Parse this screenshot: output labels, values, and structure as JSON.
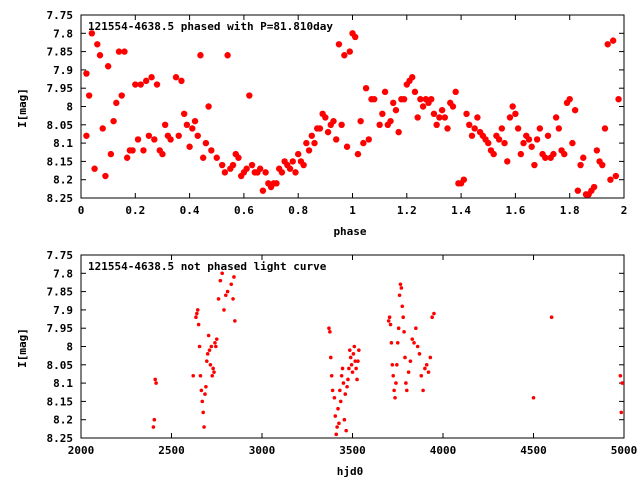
{
  "chart_data": [
    {
      "type": "scatter",
      "title": "121554-4638.5 phased with P=81.810day",
      "xlabel": "phase",
      "ylabel": "I[mag]",
      "xlim": [
        0,
        2
      ],
      "ylim": [
        8.25,
        7.75
      ],
      "xticks": [
        "0",
        "0.2",
        "0.4",
        "0.6",
        "0.8",
        "1",
        "1.2",
        "1.4",
        "1.6",
        "1.8",
        "2"
      ],
      "yticks": [
        "7.75",
        "7.8",
        "7.85",
        "7.9",
        "7.95",
        "8",
        "8.05",
        "8.1",
        "8.15",
        "8.2",
        "8.25"
      ],
      "color": "#ff0000",
      "marker": "filled-circle-large",
      "points": [
        [
          0.02,
          7.91
        ],
        [
          0.02,
          8.08
        ],
        [
          0.03,
          7.97
        ],
        [
          0.04,
          7.8
        ],
        [
          0.05,
          8.17
        ],
        [
          0.06,
          7.83
        ],
        [
          0.07,
          7.86
        ],
        [
          0.08,
          8.06
        ],
        [
          0.09,
          8.19
        ],
        [
          0.1,
          7.89
        ],
        [
          0.11,
          8.13
        ],
        [
          0.12,
          8.04
        ],
        [
          0.13,
          7.99
        ],
        [
          0.14,
          7.85
        ],
        [
          0.15,
          7.97
        ],
        [
          0.16,
          7.85
        ],
        [
          0.17,
          8.14
        ],
        [
          0.18,
          8.12
        ],
        [
          0.19,
          8.12
        ],
        [
          0.2,
          7.94
        ],
        [
          0.21,
          8.09
        ],
        [
          0.22,
          7.94
        ],
        [
          0.23,
          8.12
        ],
        [
          0.24,
          7.93
        ],
        [
          0.25,
          8.08
        ],
        [
          0.26,
          7.92
        ],
        [
          0.27,
          8.09
        ],
        [
          0.28,
          7.94
        ],
        [
          0.29,
          8.12
        ],
        [
          0.3,
          8.13
        ],
        [
          0.31,
          8.05
        ],
        [
          0.32,
          8.08
        ],
        [
          0.33,
          8.09
        ],
        [
          0.35,
          7.92
        ],
        [
          0.36,
          8.08
        ],
        [
          0.37,
          7.93
        ],
        [
          0.38,
          8.02
        ],
        [
          0.39,
          8.05
        ],
        [
          0.4,
          8.11
        ],
        [
          0.41,
          8.06
        ],
        [
          0.42,
          8.04
        ],
        [
          0.43,
          8.08
        ],
        [
          0.44,
          7.86
        ],
        [
          0.45,
          8.14
        ],
        [
          0.46,
          8.1
        ],
        [
          0.47,
          8.0
        ],
        [
          0.48,
          8.12
        ],
        [
          0.5,
          8.14
        ],
        [
          0.52,
          8.16
        ],
        [
          0.53,
          8.18
        ],
        [
          0.54,
          7.86
        ],
        [
          0.55,
          8.17
        ],
        [
          0.56,
          8.16
        ],
        [
          0.57,
          8.13
        ],
        [
          0.58,
          8.14
        ],
        [
          0.59,
          8.19
        ],
        [
          0.6,
          8.18
        ],
        [
          0.61,
          8.17
        ],
        [
          0.62,
          7.97
        ],
        [
          0.63,
          8.16
        ],
        [
          0.64,
          8.18
        ],
        [
          0.65,
          8.18
        ],
        [
          0.66,
          8.17
        ],
        [
          0.67,
          8.23
        ],
        [
          0.68,
          8.18
        ],
        [
          0.69,
          8.21
        ],
        [
          0.7,
          8.22
        ],
        [
          0.71,
          8.21
        ],
        [
          0.72,
          8.21
        ],
        [
          0.73,
          8.17
        ],
        [
          0.74,
          8.18
        ],
        [
          0.75,
          8.15
        ],
        [
          0.76,
          8.16
        ],
        [
          0.77,
          8.17
        ],
        [
          0.78,
          8.15
        ],
        [
          0.79,
          8.18
        ],
        [
          0.8,
          8.13
        ],
        [
          0.81,
          8.15
        ],
        [
          0.82,
          8.16
        ],
        [
          0.83,
          8.1
        ],
        [
          0.84,
          8.12
        ],
        [
          0.85,
          8.08
        ],
        [
          0.86,
          8.1
        ],
        [
          0.87,
          8.06
        ],
        [
          0.88,
          8.06
        ],
        [
          0.89,
          8.02
        ],
        [
          0.9,
          8.03
        ],
        [
          0.91,
          8.07
        ],
        [
          0.92,
          8.05
        ],
        [
          0.93,
          8.04
        ],
        [
          0.94,
          8.09
        ],
        [
          0.95,
          7.83
        ],
        [
          0.96,
          8.05
        ],
        [
          0.97,
          7.86
        ],
        [
          0.98,
          8.11
        ],
        [
          0.99,
          7.85
        ],
        [
          1.0,
          7.8
        ],
        [
          1.01,
          7.81
        ],
        [
          1.02,
          8.13
        ],
        [
          1.03,
          8.04
        ],
        [
          1.04,
          8.1
        ],
        [
          1.05,
          7.95
        ],
        [
          1.06,
          8.09
        ],
        [
          1.07,
          7.98
        ],
        [
          1.08,
          7.98
        ],
        [
          1.1,
          8.05
        ],
        [
          1.11,
          8.02
        ],
        [
          1.12,
          7.96
        ],
        [
          1.13,
          8.05
        ],
        [
          1.14,
          8.04
        ],
        [
          1.15,
          7.99
        ],
        [
          1.16,
          8.01
        ],
        [
          1.17,
          8.07
        ],
        [
          1.18,
          7.98
        ],
        [
          1.19,
          7.98
        ],
        [
          1.2,
          7.94
        ],
        [
          1.21,
          7.93
        ],
        [
          1.22,
          7.92
        ],
        [
          1.23,
          7.96
        ],
        [
          1.24,
          8.03
        ],
        [
          1.25,
          7.98
        ],
        [
          1.26,
          8.0
        ],
        [
          1.27,
          7.98
        ],
        [
          1.28,
          7.99
        ],
        [
          1.29,
          7.98
        ],
        [
          1.3,
          8.02
        ],
        [
          1.31,
          8.05
        ],
        [
          1.32,
          8.03
        ],
        [
          1.33,
          8.01
        ],
        [
          1.34,
          8.03
        ],
        [
          1.35,
          8.06
        ],
        [
          1.36,
          7.99
        ],
        [
          1.37,
          8.0
        ],
        [
          1.38,
          7.96
        ],
        [
          1.39,
          8.21
        ],
        [
          1.4,
          8.21
        ],
        [
          1.41,
          8.2
        ],
        [
          1.42,
          8.02
        ],
        [
          1.43,
          8.05
        ],
        [
          1.44,
          8.08
        ],
        [
          1.45,
          8.06
        ],
        [
          1.46,
          8.03
        ],
        [
          1.47,
          8.07
        ],
        [
          1.48,
          8.08
        ],
        [
          1.49,
          8.09
        ],
        [
          1.5,
          8.1
        ],
        [
          1.51,
          8.12
        ],
        [
          1.52,
          8.13
        ],
        [
          1.53,
          8.08
        ],
        [
          1.54,
          8.09
        ],
        [
          1.55,
          8.06
        ],
        [
          1.56,
          8.1
        ],
        [
          1.57,
          8.15
        ],
        [
          1.58,
          8.03
        ],
        [
          1.59,
          8.0
        ],
        [
          1.6,
          8.02
        ],
        [
          1.61,
          8.06
        ],
        [
          1.62,
          8.13
        ],
        [
          1.63,
          8.1
        ],
        [
          1.64,
          8.08
        ],
        [
          1.65,
          8.09
        ],
        [
          1.66,
          8.11
        ],
        [
          1.67,
          8.16
        ],
        [
          1.68,
          8.09
        ],
        [
          1.69,
          8.06
        ],
        [
          1.7,
          8.13
        ],
        [
          1.71,
          8.14
        ],
        [
          1.72,
          8.08
        ],
        [
          1.73,
          8.14
        ],
        [
          1.74,
          8.13
        ],
        [
          1.75,
          8.03
        ],
        [
          1.76,
          8.06
        ],
        [
          1.77,
          8.12
        ],
        [
          1.78,
          8.13
        ],
        [
          1.79,
          7.99
        ],
        [
          1.8,
          7.98
        ],
        [
          1.81,
          8.1
        ],
        [
          1.82,
          8.01
        ],
        [
          1.83,
          8.23
        ],
        [
          1.84,
          8.16
        ],
        [
          1.85,
          8.14
        ],
        [
          1.86,
          8.24
        ],
        [
          1.87,
          8.24
        ],
        [
          1.88,
          8.23
        ],
        [
          1.89,
          8.22
        ],
        [
          1.9,
          8.12
        ],
        [
          1.91,
          8.15
        ],
        [
          1.92,
          8.16
        ],
        [
          1.93,
          8.06
        ],
        [
          1.94,
          7.83
        ],
        [
          1.95,
          8.2
        ],
        [
          1.96,
          7.82
        ],
        [
          1.97,
          8.19
        ],
        [
          1.98,
          7.98
        ]
      ]
    },
    {
      "type": "scatter",
      "title": "121554-4638.5 not phased light curve",
      "xlabel": "hjd0",
      "ylabel": "I[mag]",
      "xlim": [
        2000,
        5000
      ],
      "ylim": [
        8.25,
        7.75
      ],
      "xticks": [
        "2000",
        "2500",
        "3000",
        "3500",
        "4000",
        "4500",
        "5000"
      ],
      "yticks": [
        "7.75",
        "7.8",
        "7.85",
        "7.9",
        "7.95",
        "8",
        "8.05",
        "8.1",
        "8.15",
        "8.2",
        "8.25"
      ],
      "color": "#ff0000",
      "marker": "filled-circle-small",
      "points": [
        [
          2400,
          8.22
        ],
        [
          2405,
          8.2
        ],
        [
          2410,
          8.09
        ],
        [
          2415,
          8.1
        ],
        [
          2620,
          8.08
        ],
        [
          2635,
          7.92
        ],
        [
          2640,
          7.91
        ],
        [
          2645,
          7.9
        ],
        [
          2650,
          7.94
        ],
        [
          2655,
          8.0
        ],
        [
          2660,
          8.08
        ],
        [
          2665,
          8.12
        ],
        [
          2670,
          8.15
        ],
        [
          2675,
          8.18
        ],
        [
          2680,
          8.22
        ],
        [
          2685,
          8.13
        ],
        [
          2690,
          8.11
        ],
        [
          2695,
          8.04
        ],
        [
          2700,
          8.02
        ],
        [
          2705,
          7.97
        ],
        [
          2710,
          8.01
        ],
        [
          2715,
          8.05
        ],
        [
          2720,
          8.0
        ],
        [
          2725,
          8.08
        ],
        [
          2730,
          8.06
        ],
        [
          2735,
          8.07
        ],
        [
          2740,
          7.99
        ],
        [
          2745,
          8.0
        ],
        [
          2750,
          7.98
        ],
        [
          2760,
          7.87
        ],
        [
          2770,
          7.82
        ],
        [
          2780,
          7.8
        ],
        [
          2790,
          7.9
        ],
        [
          2800,
          7.86
        ],
        [
          2810,
          7.85
        ],
        [
          2830,
          7.83
        ],
        [
          2840,
          7.87
        ],
        [
          2845,
          7.81
        ],
        [
          2850,
          7.93
        ],
        [
          3370,
          7.95
        ],
        [
          3375,
          7.96
        ],
        [
          3380,
          8.03
        ],
        [
          3385,
          8.08
        ],
        [
          3390,
          8.12
        ],
        [
          3400,
          8.14
        ],
        [
          3405,
          8.19
        ],
        [
          3410,
          8.24
        ],
        [
          3415,
          8.22
        ],
        [
          3420,
          8.17
        ],
        [
          3425,
          8.21
        ],
        [
          3430,
          8.12
        ],
        [
          3435,
          8.15
        ],
        [
          3440,
          8.08
        ],
        [
          3445,
          8.06
        ],
        [
          3450,
          8.1
        ],
        [
          3455,
          8.2
        ],
        [
          3460,
          8.13
        ],
        [
          3465,
          8.23
        ],
        [
          3470,
          8.11
        ],
        [
          3475,
          8.09
        ],
        [
          3480,
          8.06
        ],
        [
          3485,
          8.01
        ],
        [
          3490,
          8.03
        ],
        [
          3495,
          8.05
        ],
        [
          3500,
          8.07
        ],
        [
          3505,
          8.02
        ],
        [
          3510,
          8.0
        ],
        [
          3515,
          8.04
        ],
        [
          3520,
          8.06
        ],
        [
          3525,
          8.09
        ],
        [
          3530,
          8.04
        ],
        [
          3535,
          8.01
        ],
        [
          3700,
          7.93
        ],
        [
          3705,
          7.92
        ],
        [
          3710,
          7.94
        ],
        [
          3715,
          7.99
        ],
        [
          3720,
          8.05
        ],
        [
          3725,
          8.08
        ],
        [
          3730,
          8.12
        ],
        [
          3735,
          8.14
        ],
        [
          3740,
          8.1
        ],
        [
          3745,
          8.05
        ],
        [
          3750,
          7.99
        ],
        [
          3755,
          7.95
        ],
        [
          3760,
          7.86
        ],
        [
          3765,
          7.83
        ],
        [
          3770,
          7.84
        ],
        [
          3775,
          7.89
        ],
        [
          3780,
          7.92
        ],
        [
          3785,
          7.96
        ],
        [
          3790,
          8.03
        ],
        [
          3795,
          8.1
        ],
        [
          3800,
          8.12
        ],
        [
          3810,
          8.07
        ],
        [
          3820,
          8.04
        ],
        [
          3830,
          7.98
        ],
        [
          3840,
          7.99
        ],
        [
          3850,
          7.95
        ],
        [
          3860,
          8.0
        ],
        [
          3870,
          8.02
        ],
        [
          3880,
          8.08
        ],
        [
          3890,
          8.12
        ],
        [
          3900,
          8.06
        ],
        [
          3910,
          8.05
        ],
        [
          3920,
          8.07
        ],
        [
          3930,
          8.03
        ],
        [
          3940,
          7.92
        ],
        [
          3950,
          7.91
        ],
        [
          4500,
          8.14
        ],
        [
          4600,
          7.92
        ],
        [
          4980,
          8.08
        ],
        [
          4985,
          8.18
        ],
        [
          4990,
          8.1
        ]
      ]
    }
  ]
}
